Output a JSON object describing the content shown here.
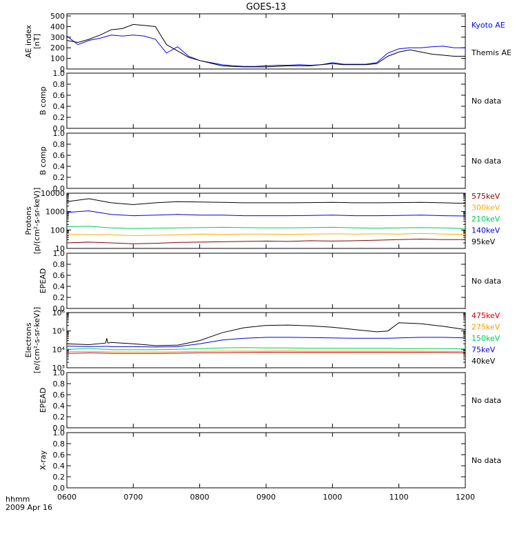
{
  "title": "GOES-13",
  "footer": {
    "time_label": "hhmm",
    "date_label": "2009 Apr 16"
  },
  "x_axis": {
    "range": [
      0,
      360
    ],
    "ticks": [
      {
        "v": 0,
        "label": "0600"
      },
      {
        "v": 60,
        "label": "0700"
      },
      {
        "v": 120,
        "label": "0800"
      },
      {
        "v": 180,
        "label": "0900"
      },
      {
        "v": 240,
        "label": "1000"
      },
      {
        "v": 300,
        "label": "1100"
      },
      {
        "v": 360,
        "label": "1200"
      }
    ]
  },
  "colors": {
    "kyoto": "#0000ff",
    "themis": "#000000",
    "p575": "#880000",
    "p300": "#ffaa00",
    "p210": "#00cc55",
    "p140": "#0000dd",
    "p95": "#000000",
    "e475": "#cc0000",
    "e275": "#ff9900",
    "e150": "#00cc55",
    "e75": "#0000dd",
    "e40": "#000000"
  },
  "panels": [
    {
      "id": "ae",
      "ylabel": "AE index\n[nT]",
      "scale": "linear",
      "ylim": [
        0,
        520
      ],
      "yticks": [
        {
          "v": 0,
          "label": "0"
        },
        {
          "v": 100,
          "label": "100"
        },
        {
          "v": 200,
          "label": "200"
        },
        {
          "v": 300,
          "label": "300"
        },
        {
          "v": 400,
          "label": "400"
        },
        {
          "v": 500,
          "label": "500"
        }
      ],
      "legend": [
        {
          "text": "Kyoto AE",
          "color": "#0000ff"
        },
        {
          "text": "Themis AE",
          "color": "#000000"
        }
      ]
    },
    {
      "id": "b1",
      "ylabel": "B comp",
      "scale": "linear",
      "ylim": [
        0,
        1
      ],
      "yticks": [
        {
          "v": 0,
          "label": "0.0"
        },
        {
          "v": 0.2,
          "label": "0.2"
        },
        {
          "v": 0.4,
          "label": "0.4"
        },
        {
          "v": 0.6,
          "label": "0.6"
        },
        {
          "v": 0.8,
          "label": "0.8"
        },
        {
          "v": 1.0,
          "label": "1.0"
        }
      ],
      "no_data": "No data"
    },
    {
      "id": "b2",
      "ylabel": "B comp",
      "scale": "linear",
      "ylim": [
        0,
        1
      ],
      "yticks": [
        {
          "v": 0,
          "label": "0.0"
        },
        {
          "v": 0.2,
          "label": "0.2"
        },
        {
          "v": 0.4,
          "label": "0.4"
        },
        {
          "v": 0.6,
          "label": "0.6"
        },
        {
          "v": 0.8,
          "label": "0.8"
        },
        {
          "v": 1.0,
          "label": "1.0"
        }
      ],
      "no_data": "No data"
    },
    {
      "id": "protons",
      "ylabel": "Protons\n[p/(cm²-s-sr-keV)]",
      "scale": "log",
      "ylim": [
        10,
        10000
      ],
      "yticks": [
        {
          "v": 10,
          "label": "10"
        },
        {
          "v": 100,
          "label": "100"
        },
        {
          "v": 1000,
          "label": "1000"
        },
        {
          "v": 10000,
          "label": "10000"
        }
      ],
      "legend": [
        {
          "text": "575keV",
          "color": "#880000"
        },
        {
          "text": "300keV",
          "color": "#ffaa00"
        },
        {
          "text": "210keV",
          "color": "#00cc55"
        },
        {
          "text": "140keV",
          "color": "#0000dd"
        },
        {
          "text": "95keV",
          "color": "#000000"
        }
      ]
    },
    {
      "id": "epead1",
      "ylabel": "EPEAD",
      "scale": "linear",
      "ylim": [
        0,
        1
      ],
      "yticks": [
        {
          "v": 0,
          "label": "0.0"
        },
        {
          "v": 0.2,
          "label": "0.2"
        },
        {
          "v": 0.4,
          "label": "0.4"
        },
        {
          "v": 0.6,
          "label": "0.6"
        },
        {
          "v": 0.8,
          "label": "0.8"
        },
        {
          "v": 1.0,
          "label": "1.0"
        }
      ],
      "no_data": "No data"
    },
    {
      "id": "electrons",
      "ylabel": "Electrons\n[e/(cm²-s-sr-keV)]",
      "scale": "log",
      "ylim": [
        1000,
        1000000
      ],
      "yticks": [
        {
          "v": 1000,
          "label": "10³"
        },
        {
          "v": 10000,
          "label": "10⁴"
        },
        {
          "v": 100000,
          "label": "10⁵"
        },
        {
          "v": 1000000,
          "label": "10⁶"
        }
      ],
      "legend": [
        {
          "text": "475keV",
          "color": "#cc0000"
        },
        {
          "text": "275keV",
          "color": "#ff9900"
        },
        {
          "text": "150keV",
          "color": "#00cc55"
        },
        {
          "text": "75keV",
          "color": "#0000dd"
        },
        {
          "text": "40keV",
          "color": "#000000"
        }
      ]
    },
    {
      "id": "epead2",
      "ylabel": "EPEAD",
      "scale": "linear",
      "ylim": [
        0,
        1
      ],
      "yticks": [
        {
          "v": 0,
          "label": "0.0"
        },
        {
          "v": 0.2,
          "label": "0.2"
        },
        {
          "v": 0.4,
          "label": "0.4"
        },
        {
          "v": 0.6,
          "label": "0.6"
        },
        {
          "v": 0.8,
          "label": "0.8"
        },
        {
          "v": 1.0,
          "label": "1.0"
        }
      ],
      "no_data": "No data"
    },
    {
      "id": "xray",
      "ylabel": "X-ray",
      "scale": "linear",
      "ylim": [
        0,
        1
      ],
      "yticks": [
        {
          "v": 0,
          "label": "0.0"
        },
        {
          "v": 0.2,
          "label": "0.2"
        },
        {
          "v": 0.4,
          "label": "0.4"
        },
        {
          "v": 0.6,
          "label": "0.6"
        },
        {
          "v": 0.8,
          "label": "0.8"
        },
        {
          "v": 1.0,
          "label": "1.0"
        }
      ],
      "no_data": "No data"
    }
  ],
  "chart_data": [
    {
      "type": "line",
      "panel": "ae",
      "title": "GOES-13",
      "xlabel": "hhmm",
      "ylabel": "AE index [nT]",
      "ylim": [
        0,
        520
      ],
      "x": [
        0,
        10,
        20,
        30,
        40,
        50,
        60,
        70,
        80,
        90,
        100,
        110,
        120,
        130,
        140,
        150,
        160,
        170,
        180,
        190,
        200,
        210,
        220,
        230,
        240,
        250,
        260,
        270,
        280,
        290,
        300,
        310,
        320,
        330,
        340,
        350,
        360
      ],
      "series": [
        {
          "name": "Kyoto AE",
          "color": "#0000ff",
          "values": [
            310,
            230,
            270,
            290,
            320,
            310,
            320,
            310,
            280,
            150,
            210,
            120,
            80,
            60,
            40,
            30,
            25,
            25,
            30,
            35,
            35,
            40,
            35,
            40,
            60,
            45,
            45,
            45,
            60,
            150,
            190,
            200,
            200,
            210,
            215,
            200,
            200
          ]
        },
        {
          "name": "Themis AE",
          "color": "#000000",
          "values": [
            270,
            250,
            280,
            320,
            370,
            380,
            420,
            410,
            400,
            230,
            170,
            110,
            80,
            55,
            30,
            25,
            20,
            20,
            20,
            25,
            30,
            30,
            30,
            40,
            50,
            40,
            40,
            40,
            50,
            120,
            160,
            180,
            160,
            140,
            130,
            120,
            120
          ]
        }
      ]
    },
    {
      "type": "line",
      "panel": "protons",
      "ylabel": "Protons [p/(cm²-s-sr-keV)]",
      "scale": "log",
      "ylim": [
        10,
        10000
      ],
      "x": [
        0,
        20,
        40,
        60,
        80,
        100,
        120,
        140,
        160,
        180,
        200,
        220,
        240,
        260,
        280,
        300,
        320,
        340,
        360
      ],
      "series": [
        {
          "name": "575keV",
          "color": "#880000",
          "values": [
            20,
            22,
            20,
            18,
            19,
            21,
            22,
            23,
            24,
            25,
            24,
            26,
            25,
            26,
            28,
            30,
            32,
            30,
            30
          ]
        },
        {
          "name": "300keV",
          "color": "#ffaa00",
          "values": [
            60,
            55,
            55,
            50,
            52,
            55,
            60,
            58,
            60,
            60,
            58,
            60,
            62,
            60,
            62,
            60,
            65,
            60,
            58
          ]
        },
        {
          "name": "210keV",
          "color": "#00cc55",
          "values": [
            150,
            160,
            130,
            120,
            125,
            130,
            135,
            140,
            135,
            130,
            130,
            135,
            140,
            130,
            125,
            130,
            135,
            130,
            120
          ]
        },
        {
          "name": "140keV",
          "color": "#0000dd",
          "values": [
            900,
            1100,
            700,
            600,
            650,
            700,
            650,
            650,
            600,
            600,
            600,
            620,
            650,
            600,
            600,
            620,
            650,
            600,
            580
          ]
        },
        {
          "name": "95keV",
          "color": "#000000",
          "values": [
            3500,
            5000,
            3000,
            2400,
            3000,
            3500,
            3300,
            3200,
            3000,
            3000,
            3000,
            3100,
            3200,
            3000,
            3000,
            3100,
            3200,
            3000,
            2800
          ]
        }
      ]
    },
    {
      "type": "line",
      "panel": "electrons",
      "ylabel": "Electrons [e/(cm²-s-sr-keV)]",
      "scale": "log",
      "ylim": [
        1000,
        1000000
      ],
      "x": [
        0,
        20,
        35,
        36,
        37,
        40,
        60,
        80,
        100,
        120,
        140,
        160,
        180,
        200,
        220,
        240,
        260,
        280,
        290,
        300,
        320,
        340,
        360
      ],
      "series": [
        {
          "name": "475keV",
          "color": "#cc0000",
          "values": [
            6000,
            6500,
            6200,
            6200,
            6200,
            6000,
            6000,
            6000,
            6200,
            6500,
            6600,
            6800,
            7000,
            7000,
            7000,
            7000,
            7000,
            7000,
            7000,
            7000,
            7000,
            6800,
            6500
          ]
        },
        {
          "name": "275keV",
          "color": "#ff9900",
          "values": [
            7500,
            7800,
            7500,
            7500,
            7500,
            7200,
            7200,
            7200,
            7400,
            7800,
            8000,
            8000,
            8000,
            8200,
            8000,
            8000,
            8000,
            8000,
            8000,
            8000,
            8000,
            7800,
            7600
          ]
        },
        {
          "name": "150keV",
          "color": "#00cc55",
          "values": [
            10000,
            11000,
            10000,
            10000,
            10000,
            9500,
            9500,
            9500,
            10000,
            11000,
            12000,
            12500,
            12000,
            12000,
            11500,
            11500,
            11500,
            11500,
            11500,
            11000,
            11000,
            11000,
            10500
          ]
        },
        {
          "name": "75keV",
          "color": "#0000dd",
          "values": [
            15000,
            14000,
            14500,
            14500,
            14500,
            14000,
            14000,
            13500,
            14000,
            20000,
            32000,
            40000,
            45000,
            45000,
            44000,
            42000,
            40000,
            40000,
            40000,
            42000,
            45000,
            45000,
            42000
          ]
        },
        {
          "name": "40keV",
          "color": "#000000",
          "values": [
            20000,
            18000,
            22000,
            40000,
            22000,
            24000,
            20000,
            16000,
            17000,
            30000,
            80000,
            150000,
            200000,
            210000,
            190000,
            160000,
            120000,
            90000,
            100000,
            280000,
            250000,
            180000,
            120000
          ]
        }
      ]
    }
  ]
}
